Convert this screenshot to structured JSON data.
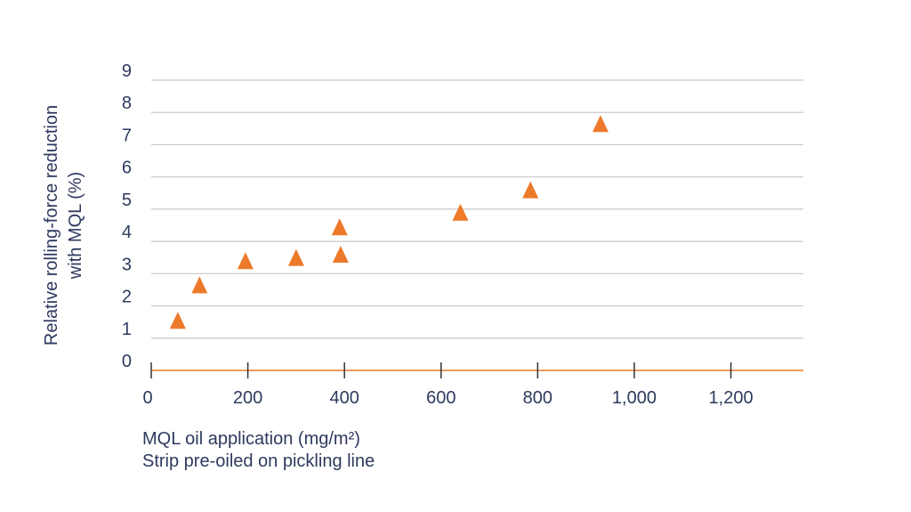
{
  "chart_data": {
    "type": "scatter",
    "xlabel": "MQL oil application (mg/m²)",
    "xlabel_line2": "Strip pre-oiled on pickling line",
    "ylabel": "Relative rolling-force reduction",
    "ylabel_line2": "with MQL (%)",
    "xlim": [
      0,
      1350
    ],
    "ylim": [
      0,
      9
    ],
    "x_ticks": [
      0,
      200,
      400,
      600,
      800,
      1000,
      1200
    ],
    "x_tick_labels": [
      "0",
      "200",
      "400",
      "600",
      "800",
      "1,000",
      "1,200"
    ],
    "y_ticks": [
      0,
      1,
      2,
      3,
      4,
      5,
      6,
      7,
      8,
      9
    ],
    "y_tick_labels": [
      "0",
      "1",
      "2",
      "3",
      "4",
      "5",
      "6",
      "7",
      "8",
      "9"
    ],
    "grid": true,
    "marker": "triangle",
    "points": [
      {
        "x": 55,
        "y": 1.5
      },
      {
        "x": 100,
        "y": 2.6
      },
      {
        "x": 195,
        "y": 3.35
      },
      {
        "x": 300,
        "y": 3.45
      },
      {
        "x": 390,
        "y": 4.4
      },
      {
        "x": 392,
        "y": 3.55
      },
      {
        "x": 640,
        "y": 4.85
      },
      {
        "x": 785,
        "y": 5.55
      },
      {
        "x": 930,
        "y": 7.6
      }
    ],
    "colors": {
      "marker": "#ec7a2a",
      "axis": "#ec7a2a",
      "grid": "#c8c8cc",
      "text": "#2e3a5e",
      "tick": "#333333"
    }
  }
}
